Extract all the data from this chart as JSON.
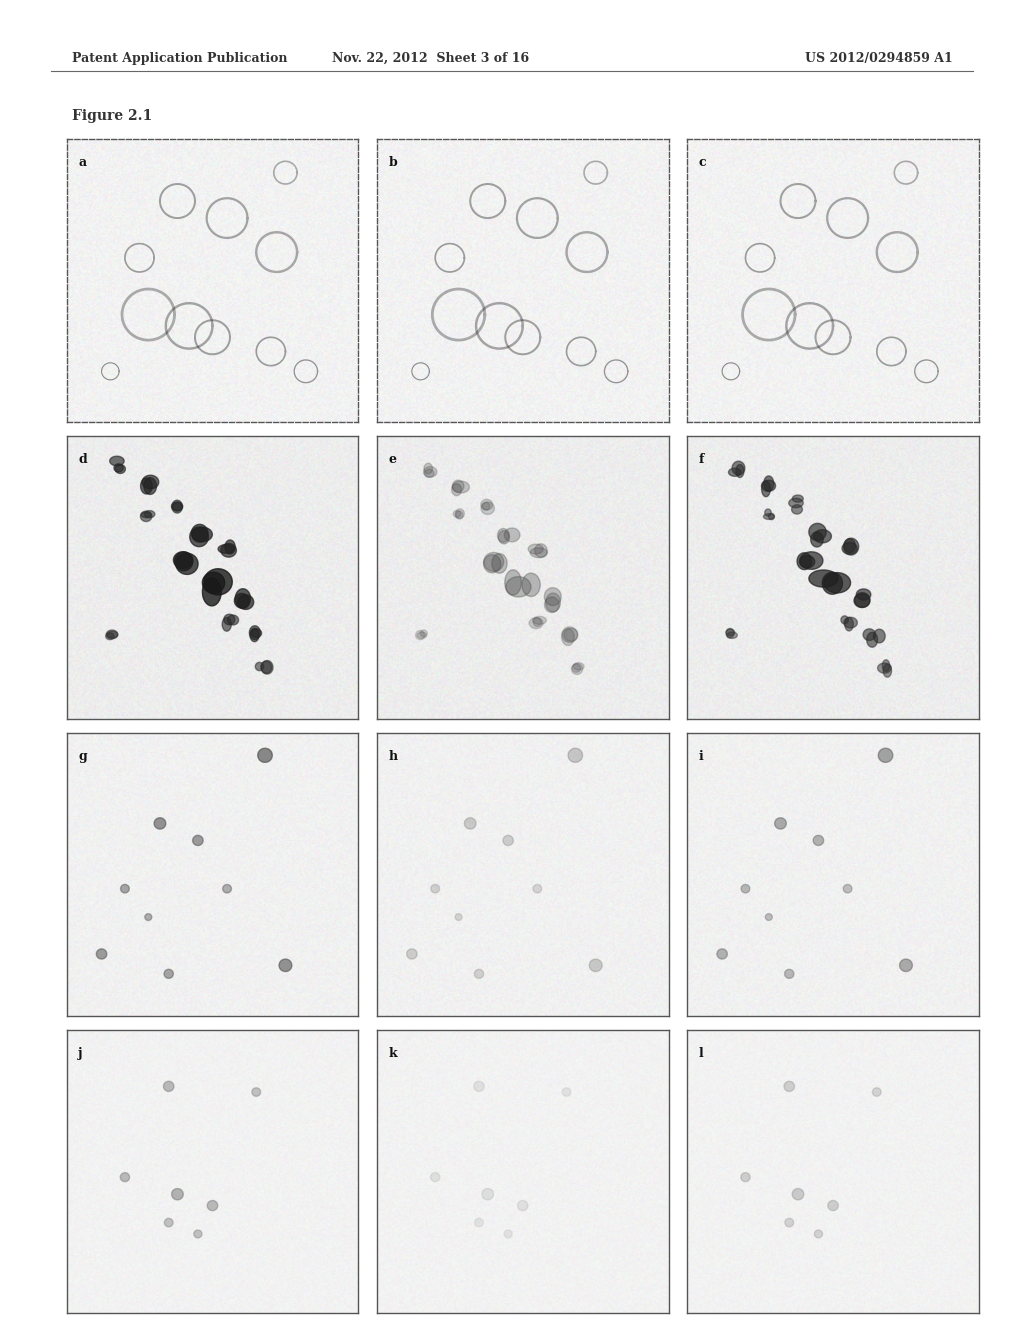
{
  "page_header_left": "Patent Application Publication",
  "page_header_mid": "Nov. 22, 2012  Sheet 3 of 16",
  "page_header_right": "US 2012/0294859 A1",
  "figure_label": "Figure 2.1",
  "panel_labels": [
    "a",
    "b",
    "c",
    "d",
    "e",
    "f",
    "g",
    "h",
    "i",
    "j",
    "k",
    "l"
  ],
  "grid_rows": 4,
  "grid_cols": 3,
  "background_color": "#ffffff",
  "panel_bg_color": "#f0ede8",
  "panel_border_color": "#555555",
  "header_fontsize": 9,
  "figure_label_fontsize": 10,
  "panel_label_fontsize": 9
}
